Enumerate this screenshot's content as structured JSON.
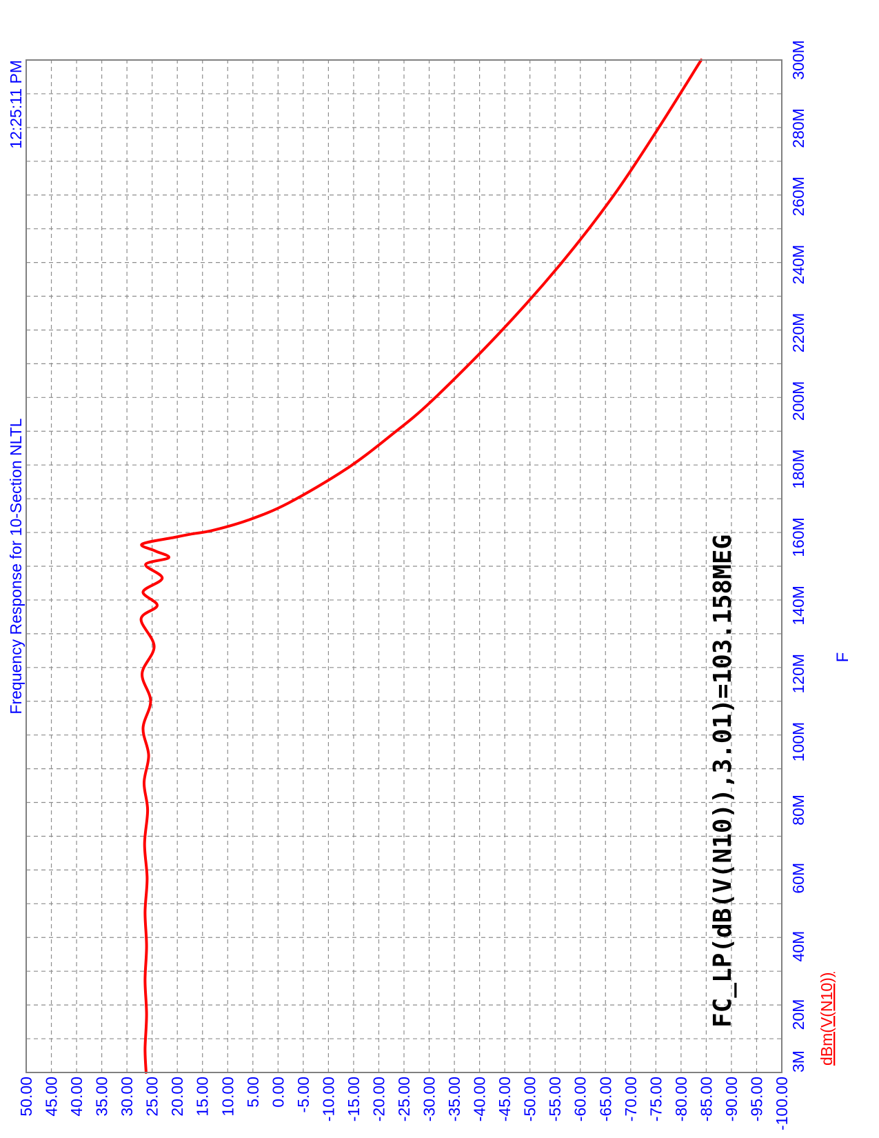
{
  "chart_data": {
    "type": "line",
    "title": "Frequency Response for 10-Section NLTL",
    "timestamp": "12:25:11 PM",
    "xlabel": "F",
    "ylabel": "",
    "x_axis": {
      "min": 3000000,
      "max": 300000000,
      "ticks": [
        3000000,
        20000000,
        40000000,
        60000000,
        80000000,
        100000000,
        120000000,
        140000000,
        160000000,
        180000000,
        200000000,
        220000000,
        240000000,
        260000000,
        280000000,
        300000000
      ],
      "tick_labels": [
        "3M",
        "20M",
        "40M",
        "60M",
        "80M",
        "100M",
        "120M",
        "140M",
        "160M",
        "180M",
        "200M",
        "220M",
        "240M",
        "260M",
        "280M",
        "300M"
      ]
    },
    "y_axis": {
      "min": -100,
      "max": 50,
      "tick_labels": [
        "50.00",
        "45.00",
        "40.00",
        "35.00",
        "30.00",
        "25.00",
        "20.00",
        "15.00",
        "10.00",
        "5.00",
        "0.00",
        "-5.00",
        "-10.00",
        "-15.00",
        "-20.00",
        "-25.00",
        "-30.00",
        "-35.00",
        "-40.00",
        "-45.00",
        "-50.00",
        "-55.00",
        "-60.00",
        "-65.00",
        "-70.00",
        "-75.00",
        "-80.00",
        "-85.00",
        "-90.00",
        "-95.00",
        "-100.00"
      ]
    },
    "grid": true,
    "series": [
      {
        "name": "dBm(V(N10))",
        "color": "#ff0000",
        "x": [
          3000000,
          10000000,
          20000000,
          30000000,
          40000000,
          50000000,
          60000000,
          70000000,
          80000000,
          88000000,
          96000000,
          104000000,
          112000000,
          120000000,
          128000000,
          136000000,
          140000000,
          144000000,
          148000000,
          152000000,
          154000000,
          156000000,
          158000000,
          160000000,
          161000000,
          162000000,
          165000000,
          170000000,
          180000000,
          190000000,
          200000000,
          220000000,
          240000000,
          260000000,
          280000000,
          300000000
        ],
        "y": [
          26.2,
          26.4,
          26.1,
          26.4,
          26.1,
          26.4,
          26.0,
          26.5,
          25.9,
          26.6,
          25.7,
          26.8,
          25.3,
          27.0,
          24.6,
          27.2,
          24.0,
          26.8,
          23.0,
          26.3,
          21.7,
          24.4,
          27.0,
          20.5,
          17.0,
          13.0,
          6.0,
          -2.0,
          -13.5,
          -22.5,
          -30.5,
          -44.0,
          -56.0,
          -66.5,
          -75.5,
          -84.0
        ]
      }
    ],
    "annotations": [
      "FC_LP(dB(V(N10)),3.01)=103.158MEG"
    ],
    "legend": "bottom-left"
  }
}
